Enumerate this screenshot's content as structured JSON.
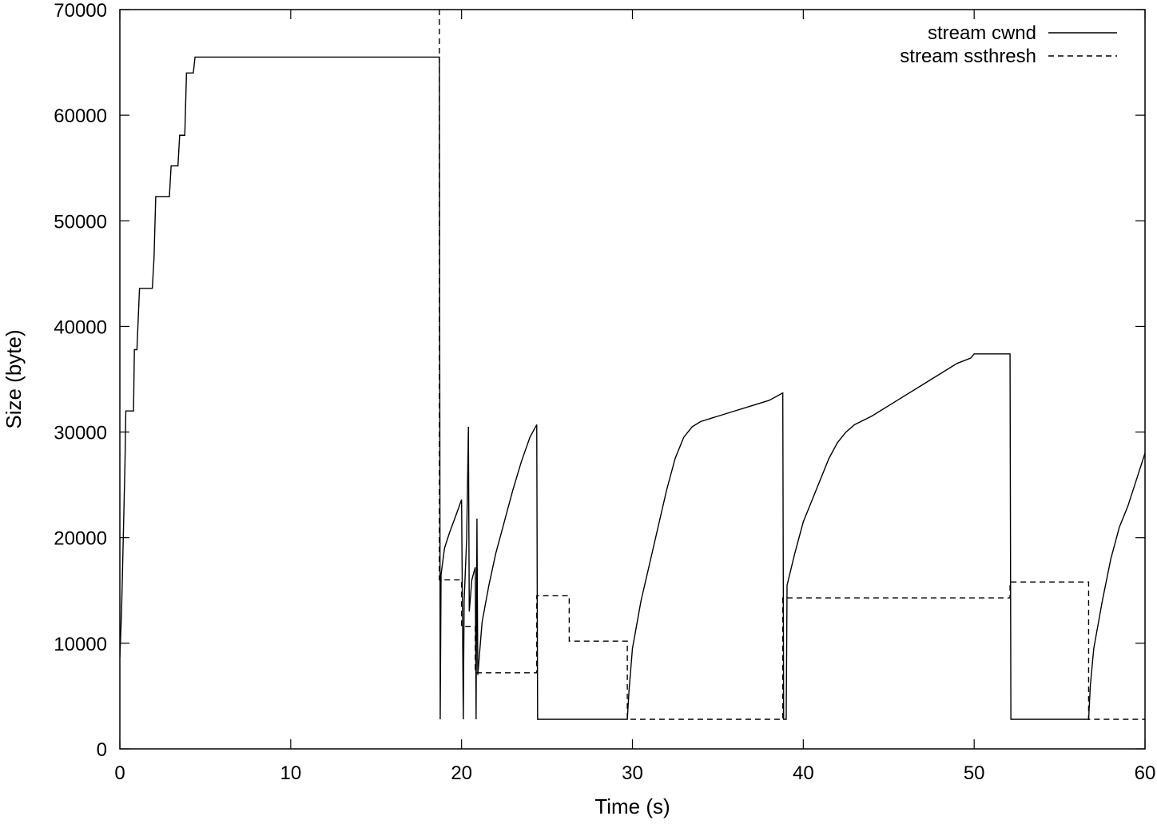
{
  "chart_data": {
    "type": "line",
    "title": "",
    "xlabel": "Time (s)",
    "ylabel": "Size (byte)",
    "xlim": [
      0,
      60
    ],
    "ylim": [
      0,
      70000
    ],
    "x_ticks": [
      0,
      10,
      20,
      30,
      40,
      50,
      60
    ],
    "y_ticks": [
      0,
      10000,
      20000,
      30000,
      40000,
      50000,
      60000,
      70000
    ],
    "grid": false,
    "legend_position": "top-right",
    "series": [
      {
        "name": "stream cwnd",
        "style": "solid",
        "color": "#000000",
        "points": [
          [
            0.0,
            8700
          ],
          [
            0.1,
            13000
          ],
          [
            0.2,
            20000
          ],
          [
            0.3,
            27000
          ],
          [
            0.35,
            32000
          ],
          [
            0.8,
            32000
          ],
          [
            0.85,
            37800
          ],
          [
            1.0,
            37800
          ],
          [
            1.15,
            43600
          ],
          [
            1.9,
            43600
          ],
          [
            2.0,
            46500
          ],
          [
            2.1,
            52300
          ],
          [
            2.9,
            52300
          ],
          [
            3.0,
            55200
          ],
          [
            3.4,
            55200
          ],
          [
            3.5,
            58100
          ],
          [
            3.8,
            58100
          ],
          [
            3.9,
            64000
          ],
          [
            4.3,
            64000
          ],
          [
            4.4,
            65500
          ],
          [
            18.7,
            65500
          ],
          [
            18.75,
            2800
          ],
          [
            18.8,
            16500
          ],
          [
            19.0,
            19000
          ],
          [
            19.3,
            20500
          ],
          [
            19.6,
            21800
          ],
          [
            20.0,
            23600
          ],
          [
            20.1,
            2800
          ],
          [
            20.15,
            14000
          ],
          [
            20.3,
            20000
          ],
          [
            20.4,
            30500
          ],
          [
            20.45,
            13000
          ],
          [
            20.6,
            16000
          ],
          [
            20.8,
            17200
          ],
          [
            20.85,
            2800
          ],
          [
            20.9,
            21800
          ],
          [
            20.95,
            7000
          ],
          [
            21.2,
            12000
          ],
          [
            21.6,
            15500
          ],
          [
            22.0,
            18500
          ],
          [
            22.5,
            21500
          ],
          [
            23.0,
            24500
          ],
          [
            23.5,
            27200
          ],
          [
            24.0,
            29500
          ],
          [
            24.4,
            30700
          ],
          [
            24.45,
            2800
          ],
          [
            29.7,
            2800
          ],
          [
            29.8,
            5500
          ],
          [
            30.0,
            9500
          ],
          [
            30.5,
            14000
          ],
          [
            31.0,
            17500
          ],
          [
            31.5,
            21000
          ],
          [
            32.0,
            24500
          ],
          [
            32.5,
            27500
          ],
          [
            33.0,
            29500
          ],
          [
            33.5,
            30500
          ],
          [
            34.0,
            31000
          ],
          [
            35.0,
            31500
          ],
          [
            36.0,
            32000
          ],
          [
            37.0,
            32500
          ],
          [
            38.0,
            33000
          ],
          [
            38.8,
            33700
          ],
          [
            38.85,
            2800
          ],
          [
            39.0,
            2800
          ],
          [
            39.05,
            15500
          ],
          [
            39.5,
            18500
          ],
          [
            40.0,
            21500
          ],
          [
            40.5,
            23500
          ],
          [
            41.0,
            25500
          ],
          [
            41.5,
            27500
          ],
          [
            42.0,
            29000
          ],
          [
            42.5,
            30000
          ],
          [
            43.0,
            30700
          ],
          [
            44.0,
            31500
          ],
          [
            45.0,
            32500
          ],
          [
            46.0,
            33500
          ],
          [
            47.0,
            34500
          ],
          [
            48.0,
            35500
          ],
          [
            49.0,
            36500
          ],
          [
            49.8,
            37000
          ],
          [
            50.0,
            37400
          ],
          [
            52.1,
            37400
          ],
          [
            52.15,
            2800
          ],
          [
            56.7,
            2800
          ],
          [
            56.8,
            6000
          ],
          [
            57.0,
            9500
          ],
          [
            57.5,
            14000
          ],
          [
            58.0,
            18000
          ],
          [
            58.5,
            21000
          ],
          [
            59.0,
            23000
          ],
          [
            59.5,
            25500
          ],
          [
            60.0,
            28000
          ]
        ]
      },
      {
        "name": "stream ssthresh",
        "style": "dashed",
        "color": "#000000",
        "points": [
          [
            18.7,
            70000
          ],
          [
            18.7,
            16000
          ],
          [
            20.0,
            16000
          ],
          [
            20.0,
            11600
          ],
          [
            20.8,
            11600
          ],
          [
            20.8,
            7200
          ],
          [
            24.4,
            7200
          ],
          [
            24.4,
            14500
          ],
          [
            26.3,
            14500
          ],
          [
            26.3,
            10200
          ],
          [
            29.7,
            10200
          ],
          [
            29.7,
            2800
          ],
          [
            38.8,
            2800
          ],
          [
            38.8,
            14300
          ],
          [
            52.1,
            14300
          ],
          [
            52.1,
            15800
          ],
          [
            56.7,
            15800
          ],
          [
            56.7,
            2800
          ],
          [
            60.0,
            2800
          ]
        ]
      }
    ]
  }
}
